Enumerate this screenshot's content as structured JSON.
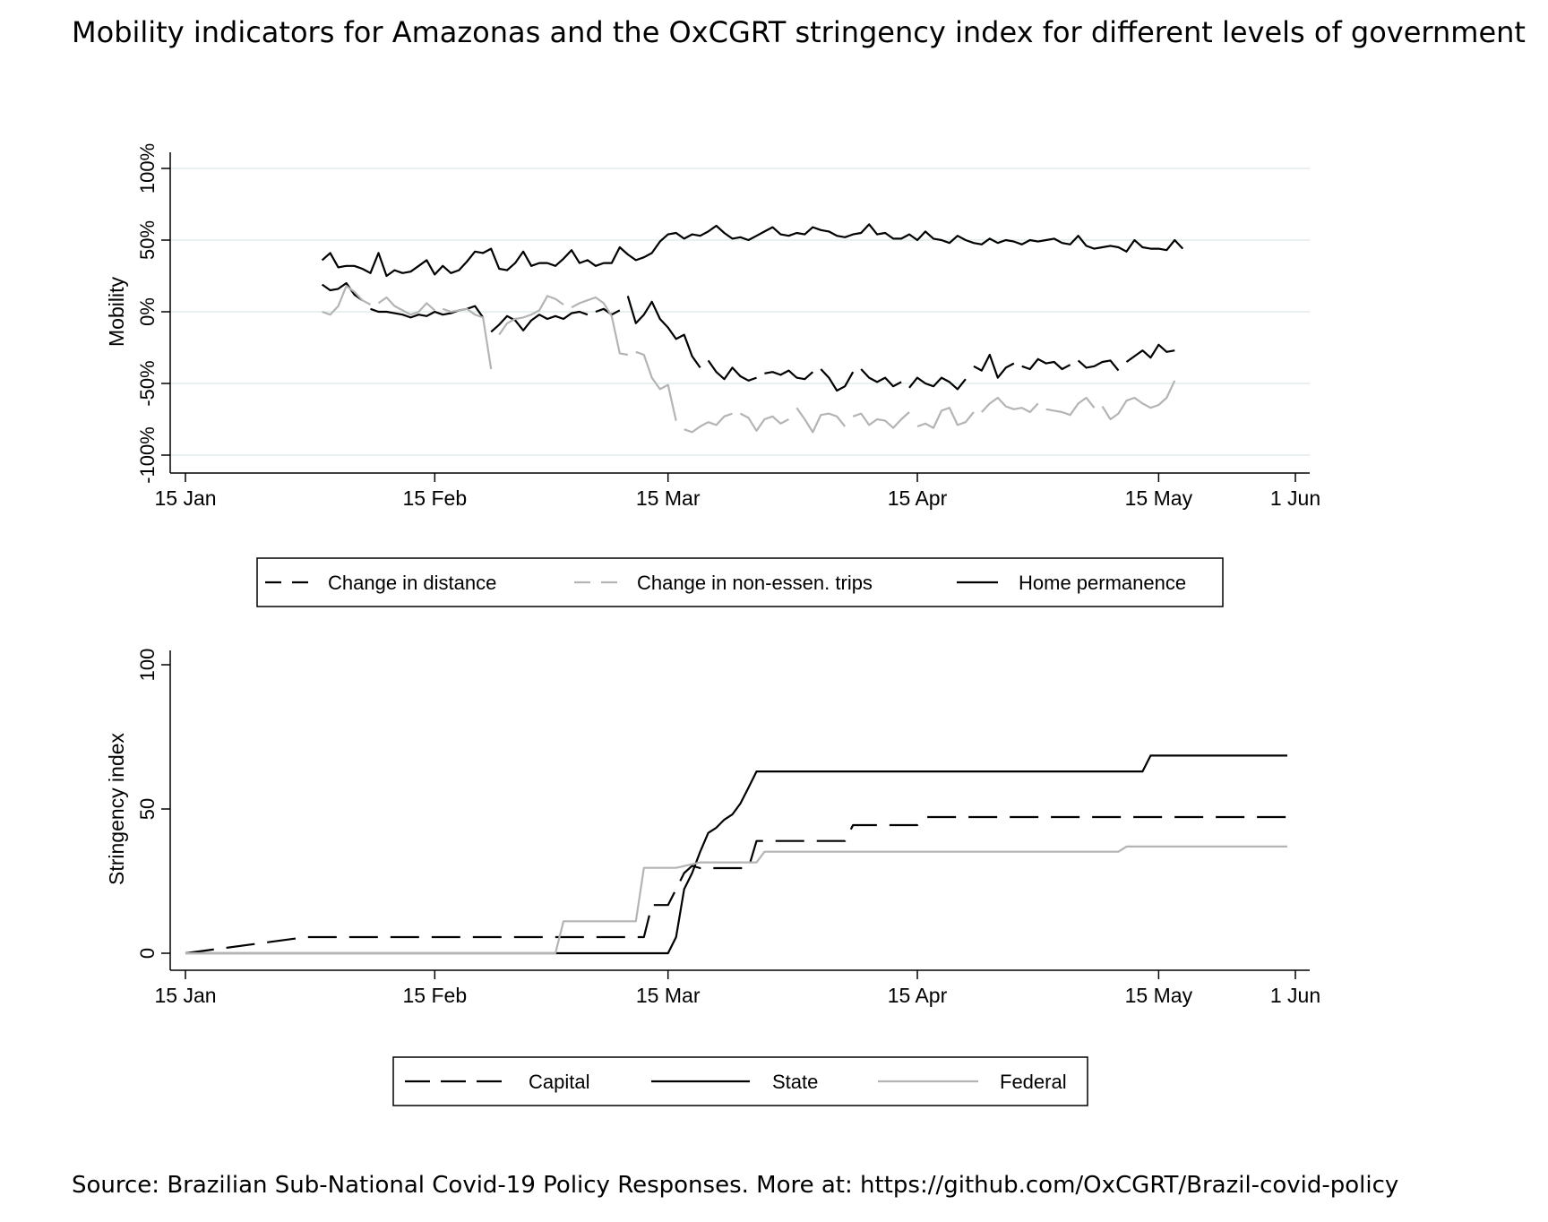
{
  "title": "Mobility indicators for Amazonas and the OxCGRT stringency index for different levels of government",
  "source": "Source: Brazilian Sub-National Covid-19 Policy Responses. More at: https://github.com/OxCGRT/Brazil-covid-policy",
  "chart_data": [
    {
      "type": "line",
      "title": "",
      "xlabel": "",
      "ylabel": "Mobility",
      "x_ticks": [
        {
          "label": "15 Jan",
          "day": 0
        },
        {
          "label": "15 Feb",
          "day": 31
        },
        {
          "label": "15 Mar",
          "day": 60
        },
        {
          "label": "15 Apr",
          "day": 91
        },
        {
          "label": "15 May",
          "day": 121
        },
        {
          "label": "1 Jun",
          "day": 138
        }
      ],
      "y_ticks": [
        {
          "label": "-100%",
          "value": -100
        },
        {
          "label": "-50%",
          "value": -50
        },
        {
          "label": "0%",
          "value": 0
        },
        {
          "label": "50%",
          "value": 50
        },
        {
          "label": "100%",
          "value": 100
        }
      ],
      "xlim": [
        0,
        138
      ],
      "ylim": [
        -100,
        100
      ],
      "grid": true,
      "legend_position": "bottom",
      "x_start_day": 17,
      "series": [
        {
          "name": "Change in distance",
          "color": "#000000",
          "style": "dash",
          "values": [
            19,
            15,
            16,
            20,
            12,
            8,
            2,
            0,
            0,
            -1,
            -2,
            -4,
            -2,
            -3,
            0,
            -2,
            -1,
            1,
            2,
            4,
            -4,
            -14,
            -9,
            -3,
            -6,
            -13,
            -6,
            -2,
            -5,
            -3,
            -5,
            -1,
            0,
            -2,
            0,
            2,
            -2,
            1,
            11,
            -8,
            -2,
            7,
            -5,
            -11,
            -19,
            -16,
            -31,
            -39,
            -34,
            -42,
            -47,
            -39,
            -45,
            -48,
            -46,
            -43,
            -42,
            -44,
            -41,
            -46,
            -47,
            -42,
            -40,
            -46,
            -55,
            -52,
            -42,
            -40,
            -46,
            -49,
            -46,
            -52,
            -49,
            -53,
            -46,
            -50,
            -52,
            -46,
            -49,
            -54,
            -47,
            -38,
            -41,
            -30,
            -46,
            -39,
            -36,
            -38,
            -40,
            -33,
            -36,
            -35,
            -40,
            -37,
            -34,
            -39,
            -38,
            -35,
            -34,
            -41,
            -35,
            -31,
            -27,
            -32,
            -23,
            -28,
            -27,
            -22
          ],
          "segments": [
            [
              0,
              5
            ],
            [
              6,
              20
            ],
            [
              21,
              33
            ],
            [
              34,
              37
            ],
            [
              38,
              47
            ],
            [
              48,
              54
            ],
            [
              55,
              61
            ],
            [
              62,
              66
            ],
            [
              67,
              72
            ],
            [
              73,
              80
            ],
            [
              81,
              86
            ],
            [
              87,
              93
            ],
            [
              94,
              99
            ],
            [
              100,
              106
            ]
          ]
        },
        {
          "name": "Change in non-essen. trips",
          "color": "#b4b4b4",
          "style": "dash",
          "values": [
            0,
            -2,
            4,
            18,
            14,
            8,
            5,
            6,
            10,
            4,
            1,
            -2,
            0,
            6,
            1,
            2,
            0,
            1,
            2,
            -2,
            -4,
            -40,
            -16,
            -8,
            -5,
            -4,
            -2,
            1,
            11,
            9,
            5,
            3,
            6,
            8,
            10,
            6,
            -3,
            -29,
            -30,
            -28,
            -30,
            -46,
            -54,
            -51,
            -76,
            -82,
            -84,
            -80,
            -77,
            -79,
            -73,
            -71,
            -71,
            -74,
            -83,
            -75,
            -73,
            -78,
            -75,
            -67,
            -75,
            -84,
            -72,
            -71,
            -73,
            -80,
            -73,
            -71,
            -79,
            -75,
            -76,
            -81,
            -75,
            -70,
            -80,
            -78,
            -81,
            -69,
            -67,
            -79,
            -77,
            -70,
            -70,
            -64,
            -60,
            -66,
            -68,
            -67,
            -70,
            -64,
            -68,
            -69,
            -70,
            -72,
            -64,
            -60,
            -67,
            -66,
            -75,
            -71,
            -62,
            -60,
            -64,
            -67,
            -65,
            -60,
            -48
          ],
          "segments": [
            [
              0,
              6
            ],
            [
              7,
              14
            ],
            [
              15,
              21
            ],
            [
              22,
              30
            ],
            [
              31,
              38
            ],
            [
              39,
              44
            ],
            [
              45,
              51
            ],
            [
              52,
              58
            ],
            [
              59,
              65
            ],
            [
              66,
              73
            ],
            [
              74,
              81
            ],
            [
              82,
              89
            ],
            [
              90,
              96
            ],
            [
              97,
              106
            ]
          ]
        },
        {
          "name": "Home permanence",
          "color": "#000000",
          "style": "solid",
          "values": [
            36,
            41,
            31,
            32,
            32,
            30,
            27,
            41,
            25,
            29,
            27,
            28,
            32,
            36,
            26,
            32,
            27,
            29,
            35,
            42,
            41,
            44,
            30,
            29,
            34,
            42,
            32,
            34,
            34,
            32,
            37,
            43,
            34,
            36,
            32,
            34,
            34,
            45,
            40,
            36,
            38,
            41,
            49,
            54,
            55,
            51,
            54,
            53,
            56,
            60,
            55,
            51,
            52,
            50,
            53,
            56,
            59,
            54,
            53,
            55,
            54,
            59,
            57,
            56,
            53,
            52,
            54,
            55,
            61,
            54,
            55,
            51,
            51,
            54,
            50,
            56,
            51,
            50,
            48,
            53,
            50,
            48,
            47,
            51,
            48,
            50,
            49,
            47,
            50,
            49,
            50,
            51,
            48,
            47,
            53,
            46,
            44,
            45,
            46,
            45,
            42,
            50,
            45,
            44,
            44,
            43,
            50,
            44
          ]
        }
      ]
    },
    {
      "type": "line",
      "title": "",
      "xlabel": "",
      "ylabel": "Stringency index",
      "x_ticks": [
        {
          "label": "15 Jan",
          "day": 0
        },
        {
          "label": "15 Feb",
          "day": 31
        },
        {
          "label": "15 Mar",
          "day": 60
        },
        {
          "label": "15 Apr",
          "day": 91
        },
        {
          "label": "15 May",
          "day": 121
        },
        {
          "label": "1 Jun",
          "day": 138
        }
      ],
      "y_ticks": [
        {
          "label": "0",
          "value": 0
        },
        {
          "label": "50",
          "value": 50
        },
        {
          "label": "100",
          "value": 100
        }
      ],
      "xlim": [
        0,
        138
      ],
      "ylim": [
        0,
        100
      ],
      "grid": false,
      "legend_position": "bottom",
      "series": [
        {
          "name": "Capital",
          "color": "#000000",
          "style": "longdash",
          "x": [
            0,
            15,
            57,
            58,
            60,
            61,
            62,
            63,
            64,
            66,
            67,
            70,
            71,
            76,
            77,
            82,
            83,
            91,
            92,
            137
          ],
          "y": [
            0,
            5.6,
            5.6,
            16.7,
            16.7,
            22.2,
            27.8,
            30.3,
            29.5,
            29.5,
            29.5,
            29.5,
            38.9,
            38.9,
            38.9,
            38.9,
            44.4,
            44.4,
            47.2,
            47.2
          ]
        },
        {
          "name": "State",
          "color": "#000000",
          "style": "solid",
          "x": [
            0,
            60,
            61,
            62,
            63,
            64,
            65,
            66,
            67,
            68,
            69,
            70,
            71,
            72,
            73,
            119,
            120,
            137
          ],
          "y": [
            0,
            0,
            5.6,
            22.2,
            27.8,
            35.2,
            41.7,
            43.5,
            46.3,
            48.1,
            51.9,
            57.4,
            63,
            63,
            63,
            63,
            68.5,
            68.5
          ]
        },
        {
          "name": "Federal",
          "color": "#b4b4b4",
          "style": "solid",
          "x": [
            0,
            46,
            47,
            56,
            57,
            58,
            60,
            61,
            64,
            65,
            71,
            72,
            116,
            117,
            137
          ],
          "y": [
            0,
            0,
            11.1,
            11.1,
            29.6,
            29.6,
            29.6,
            29.6,
            31.5,
            31.5,
            31.5,
            35.2,
            35.2,
            37,
            37
          ]
        }
      ]
    }
  ]
}
